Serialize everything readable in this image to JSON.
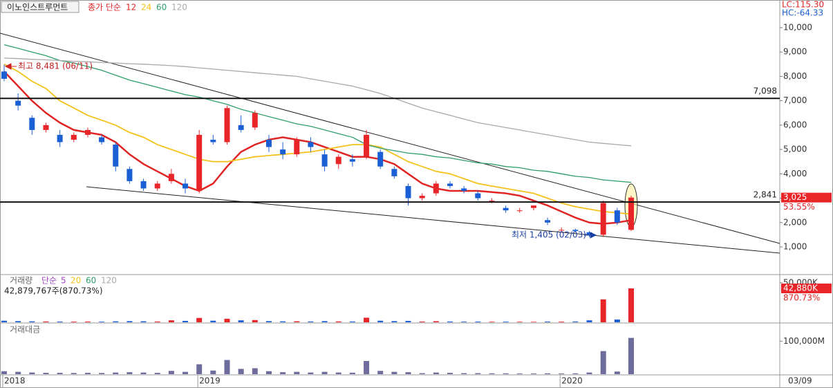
{
  "chart_data": [
    {
      "type": "candlestick",
      "title": "이노인스트루먼트",
      "ma_label": "종가 단순",
      "categories": [
        "2018",
        null,
        null,
        null,
        null,
        null,
        null,
        null,
        null,
        null,
        null,
        null,
        null,
        null,
        "2019",
        null,
        null,
        null,
        null,
        null,
        null,
        null,
        null,
        null,
        null,
        null,
        null,
        null,
        null,
        null,
        null,
        null,
        null,
        null,
        null,
        null,
        null,
        null,
        null,
        null,
        "2020",
        null,
        null,
        null,
        null,
        null
      ],
      "date_readout": "03/09",
      "up_color": "#e8262a",
      "down_color": "#1b5fd4",
      "open": [
        8200,
        7000,
        6300,
        5800,
        5600,
        5400,
        5600,
        5500,
        5200,
        4200,
        3700,
        3400,
        3700,
        3600,
        3300,
        5400,
        5300,
        6000,
        5900,
        5400,
        5000,
        4800,
        5300,
        4800,
        4400,
        4600,
        4700,
        4900,
        4200,
        3500,
        3000,
        3200,
        3600,
        3400,
        3200,
        2900,
        2600,
        2500,
        2600,
        2100,
        1700,
        1700,
        1600,
        1500,
        2500,
        1700
      ],
      "high": [
        8481,
        7300,
        6400,
        6100,
        5800,
        5700,
        5900,
        5600,
        5300,
        4300,
        3800,
        3700,
        4200,
        3800,
        5800,
        5600,
        6800,
        6400,
        6600,
        5600,
        5300,
        5500,
        5500,
        5000,
        4800,
        4800,
        5800,
        5000,
        4300,
        3600,
        3200,
        3700,
        3700,
        3500,
        3300,
        3000,
        2700,
        2600,
        2700,
        2200,
        1800,
        1750,
        1650,
        2900,
        2600,
        3100
      ],
      "low": [
        7800,
        6600,
        5600,
        5700,
        5100,
        5300,
        5500,
        5200,
        4100,
        3600,
        3300,
        3300,
        3600,
        3200,
        3200,
        5200,
        5200,
        5700,
        5800,
        4900,
        4600,
        4700,
        4900,
        4100,
        4200,
        4300,
        4600,
        4200,
        3800,
        2700,
        2900,
        3100,
        3400,
        3200,
        2900,
        2800,
        2400,
        2400,
        2500,
        1900,
        1600,
        1600,
        1405,
        1405,
        1900,
        1650
      ],
      "close": [
        7900,
        6800,
        5800,
        6000,
        5300,
        5600,
        5800,
        5300,
        4300,
        3700,
        3400,
        3600,
        4000,
        3400,
        5600,
        5300,
        6700,
        5800,
        6500,
        5100,
        4800,
        5400,
        5100,
        4300,
        4700,
        4500,
        5600,
        4300,
        3900,
        3000,
        3100,
        3600,
        3500,
        3300,
        3000,
        2900,
        2500,
        2500,
        2700,
        2000,
        1700,
        1650,
        1500,
        2800,
        2000,
        3025
      ],
      "series": [
        {
          "name": "12",
          "color": "#e02424",
          "values": [
            8200,
            7600,
            7000,
            6500,
            6100,
            5800,
            5700,
            5600,
            5300,
            4800,
            4400,
            4100,
            3800,
            3500,
            3300,
            3600,
            4300,
            4900,
            5200,
            5400,
            5500,
            5400,
            5300,
            5100,
            4900,
            4700,
            4700,
            4600,
            4400,
            4000,
            3600,
            3400,
            3300,
            3300,
            3300,
            3250,
            3200,
            3100,
            2900,
            2700,
            2450,
            2200,
            2000,
            1950,
            2000,
            2100
          ]
        },
        {
          "name": "24",
          "color": "#f3c21a",
          "values": [
            8500,
            8200,
            7800,
            7500,
            7000,
            6700,
            6400,
            6200,
            6000,
            5700,
            5500,
            5200,
            5000,
            4800,
            4600,
            4500,
            4500,
            4600,
            4700,
            4750,
            4800,
            4850,
            4900,
            5000,
            5100,
            5200,
            5200,
            5100,
            4800,
            4500,
            4300,
            4100,
            4000,
            3800,
            3600,
            3500,
            3400,
            3300,
            3200,
            3000,
            2800,
            2650,
            2550,
            2450,
            2400,
            2350
          ]
        },
        {
          "name": "60",
          "color": "#2f9d6c",
          "values": [
            9300,
            9150,
            9000,
            8850,
            8650,
            8550,
            8400,
            8250,
            8050,
            7850,
            7700,
            7550,
            7400,
            7250,
            7150,
            7000,
            6850,
            6650,
            6500,
            6350,
            6200,
            6050,
            5950,
            5800,
            5650,
            5500,
            5200,
            5050,
            4950,
            4850,
            4800,
            4700,
            4650,
            4550,
            4450,
            4400,
            4300,
            4250,
            4150,
            4100,
            4000,
            3900,
            3850,
            3750,
            3700,
            3650
          ]
        },
        {
          "name": "120",
          "color": "#a8a8a8",
          "values": [
            8750,
            8730,
            8700,
            8680,
            8650,
            8620,
            8600,
            8570,
            8550,
            8520,
            8500,
            8470,
            8440,
            8400,
            8350,
            8300,
            8250,
            8200,
            8150,
            8100,
            8050,
            8000,
            7900,
            7800,
            7700,
            7600,
            7450,
            7300,
            7100,
            6900,
            6700,
            6550,
            6400,
            6250,
            6100,
            6000,
            5900,
            5800,
            5700,
            5600,
            5500,
            5400,
            5300,
            5250,
            5200,
            5150
          ]
        }
      ],
      "ylim": [
        -135,
        11135
      ],
      "yticks": [
        {
          "value": 1000,
          "label": "1,000"
        },
        {
          "value": 2000,
          "label": "2,000"
        },
        {
          "value": 3000,
          "label": "3,000"
        },
        {
          "value": 4000,
          "label": "4,000"
        },
        {
          "value": 5000,
          "label": "5,000"
        },
        {
          "value": 6000,
          "label": "6,000"
        },
        {
          "value": 7000,
          "label": "7,000"
        },
        {
          "value": 8000,
          "label": "8,000"
        },
        {
          "value": 9000,
          "label": "9,000"
        },
        {
          "value": 10000,
          "label": "10,000"
        }
      ],
      "levels": [
        {
          "value": 7098,
          "label": "7,098"
        },
        {
          "value": 2841,
          "label": "2,841"
        }
      ],
      "high_note": "최고 8,481 (06/11)",
      "low_note": "최저 1,405 (02/03)",
      "lc": "LC:115.30",
      "hc": "HC:-64.33",
      "current": {
        "value": 3025,
        "label": "3,025",
        "change": "53.55%"
      }
    },
    {
      "type": "bar",
      "title": "거래량",
      "ma_label": "단순",
      "ma_periods": [
        {
          "name": "5",
          "color": "#a040c0"
        },
        {
          "name": "20",
          "color": "#f3c21a"
        },
        {
          "name": "60",
          "color": "#2f9d6c"
        },
        {
          "name": "120",
          "color": "#a8a8a8"
        }
      ],
      "readout": "42,879,767주(870.73%)",
      "values": [
        2000000,
        1500000,
        1200000,
        1000000,
        900000,
        800000,
        900000,
        800000,
        1200000,
        1500000,
        1300000,
        1000000,
        2500000,
        1800000,
        5500000,
        2000000,
        4500000,
        2500000,
        2800000,
        1500000,
        1200000,
        1300000,
        1000000,
        1500000,
        1100000,
        1000000,
        5800000,
        2000000,
        1500000,
        1800000,
        900000,
        1400000,
        1000000,
        800000,
        900000,
        700000,
        800000,
        700000,
        600000,
        900000,
        800000,
        1000000,
        2500000,
        29000000,
        3500000,
        42879767
      ],
      "ylim": [
        0,
        59500000
      ],
      "yticks": [
        {
          "value": 50000000,
          "label": "50,000K"
        }
      ],
      "current": {
        "value": 42880000,
        "label": "42,880K",
        "change": "870.73%"
      }
    },
    {
      "type": "bar",
      "title": "거래대금",
      "color": "#6e6c9c",
      "values": [
        9000,
        7000,
        5000,
        4000,
        4000,
        3500,
        4000,
        3500,
        5000,
        6000,
        5000,
        4000,
        10000,
        7000,
        30000,
        11000,
        43000,
        16000,
        18000,
        9000,
        6000,
        7000,
        5000,
        7000,
        5000,
        4500,
        40000,
        10000,
        7000,
        6000,
        3000,
        5000,
        4000,
        3000,
        3000,
        2500,
        2500,
        2000,
        2000,
        2500,
        2000,
        2500,
        5000,
        70000,
        8000,
        110000
      ],
      "ylim": [
        0,
        151000
      ],
      "yticks": [
        {
          "value": 100000,
          "label": "100,000M"
        }
      ]
    }
  ]
}
